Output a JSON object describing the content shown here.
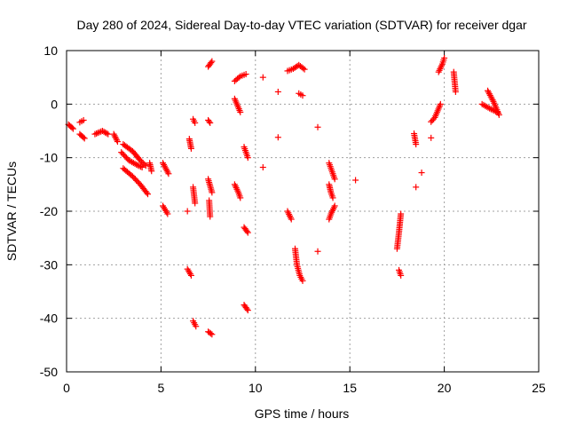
{
  "chart_data": {
    "type": "scatter",
    "title": "Day 280 of 2024, Sidereal Day-to-day VTEC variation (SDTVAR) for receiver dgar",
    "xlabel": "GPS time / hours",
    "ylabel": "SDTVAR / TECUs",
    "xlim": [
      0,
      25
    ],
    "ylim": [
      -50,
      10
    ],
    "xticks": [
      0,
      5,
      10,
      15,
      20,
      25
    ],
    "yticks": [
      -50,
      -40,
      -30,
      -20,
      -10,
      0,
      10
    ],
    "grid": true,
    "marker": "+",
    "color": "#ff0000",
    "segments": [
      {
        "x": [
          0.1,
          0.35
        ],
        "y": [
          -3.8,
          -4.6
        ]
      },
      {
        "x": [
          0.7,
          0.9
        ],
        "y": [
          -3.4,
          -3.0
        ]
      },
      {
        "x": [
          0.7,
          0.95
        ],
        "y": [
          -5.6,
          -6.4
        ]
      },
      {
        "x": [
          1.5,
          1.9,
          2.2
        ],
        "y": [
          -5.6,
          -5.0,
          -5.6
        ]
      },
      {
        "x": [
          2.5,
          2.7
        ],
        "y": [
          -5.6,
          -7.0
        ]
      },
      {
        "x": [
          3.0,
          3.5,
          3.9,
          4.2
        ],
        "y": [
          -7.5,
          -8.8,
          -10.5,
          -11.5
        ]
      },
      {
        "x": [
          2.9,
          3.3,
          3.7,
          4.0
        ],
        "y": [
          -9.0,
          -10.5,
          -11.3,
          -11.8
        ]
      },
      {
        "x": [
          3.0,
          3.5,
          3.9,
          4.3
        ],
        "y": [
          -12.0,
          -13.5,
          -15.0,
          -16.8
        ]
      },
      {
        "x": [
          4.4,
          4.5
        ],
        "y": [
          -11.0,
          -12.5
        ]
      },
      {
        "x": [
          5.1,
          5.4
        ],
        "y": [
          -11.0,
          -13.0
        ]
      },
      {
        "x": [
          5.1,
          5.35
        ],
        "y": [
          -19.0,
          -20.5
        ]
      },
      {
        "x": [
          6.5,
          6.6
        ],
        "y": [
          -6.5,
          -8.3
        ]
      },
      {
        "x": [
          6.4
        ],
        "y": [
          -20.0
        ]
      },
      {
        "x": [
          6.4,
          6.6
        ],
        "y": [
          -30.8,
          -32.0
        ]
      },
      {
        "x": [
          6.7,
          6.8
        ],
        "y": [
          -2.8,
          -3.5
        ]
      },
      {
        "x": [
          6.7,
          6.8
        ],
        "y": [
          -15.5,
          -18.5
        ]
      },
      {
        "x": [
          6.7,
          6.85
        ],
        "y": [
          -40.5,
          -41.5
        ]
      },
      {
        "x": [
          7.5,
          7.7
        ],
        "y": [
          7.0,
          8.0
        ]
      },
      {
        "x": [
          7.5,
          7.6
        ],
        "y": [
          -3.0,
          -3.5
        ]
      },
      {
        "x": [
          7.5,
          7.7
        ],
        "y": [
          -14.0,
          -16.5
        ]
      },
      {
        "x": [
          7.55,
          7.6
        ],
        "y": [
          -18.0,
          -21.0
        ]
      },
      {
        "x": [
          7.5,
          7.7
        ],
        "y": [
          -42.5,
          -43.0
        ]
      },
      {
        "x": [
          8.9,
          9.2,
          9.5
        ],
        "y": [
          4.3,
          5.2,
          5.6
        ]
      },
      {
        "x": [
          8.9,
          9.2
        ],
        "y": [
          1.0,
          -1.5
        ]
      },
      {
        "x": [
          8.9,
          9.1,
          9.2
        ],
        "y": [
          -15.0,
          -16.5,
          -17.5
        ]
      },
      {
        "x": [
          9.4,
          9.6
        ],
        "y": [
          -8.0,
          -10.0
        ]
      },
      {
        "x": [
          9.4,
          9.6
        ],
        "y": [
          -23.0,
          -24.0
        ]
      },
      {
        "x": [
          9.4,
          9.6
        ],
        "y": [
          -37.5,
          -38.5
        ]
      },
      {
        "x": [
          10.4
        ],
        "y": [
          5.0
        ]
      },
      {
        "x": [
          10.4
        ],
        "y": [
          -11.8
        ]
      },
      {
        "x": [
          11.2
        ],
        "y": [
          2.3
        ]
      },
      {
        "x": [
          11.2
        ],
        "y": [
          -6.2
        ]
      },
      {
        "x": [
          11.7,
          11.9
        ],
        "y": [
          -20.0,
          -21.5
        ]
      },
      {
        "x": [
          11.7,
          12.0,
          12.3,
          12.6
        ],
        "y": [
          6.2,
          6.6,
          7.3,
          6.5
        ]
      },
      {
        "x": [
          12.3,
          12.4,
          12.5
        ],
        "y": [
          2.0,
          1.8,
          1.6
        ]
      },
      {
        "x": [
          12.1,
          12.2,
          12.35,
          12.5
        ],
        "y": [
          -27.0,
          -30.0,
          -32.0,
          -33.0
        ]
      },
      {
        "x": [
          13.3
        ],
        "y": [
          -4.3
        ]
      },
      {
        "x": [
          13.3
        ],
        "y": [
          -27.5
        ]
      },
      {
        "x": [
          13.9,
          14.1,
          14.2
        ],
        "y": [
          -11.0,
          -13.0,
          -14.0
        ]
      },
      {
        "x": [
          13.9,
          14.0,
          14.1
        ],
        "y": [
          -15.0,
          -16.5,
          -17.5
        ]
      },
      {
        "x": [
          14.2,
          14.0,
          13.9
        ],
        "y": [
          -19.0,
          -20.5,
          -21.5
        ]
      },
      {
        "x": [
          15.3
        ],
        "y": [
          -14.2
        ]
      },
      {
        "x": [
          17.5,
          17.6,
          17.7
        ],
        "y": [
          -27.0,
          -24.0,
          -20.5
        ]
      },
      {
        "x": [
          17.6,
          17.7
        ],
        "y": [
          -31.0,
          -32.0
        ]
      },
      {
        "x": [
          18.4,
          18.5
        ],
        "y": [
          -5.5,
          -7.5
        ]
      },
      {
        "x": [
          18.5
        ],
        "y": [
          -15.5
        ]
      },
      {
        "x": [
          18.8
        ],
        "y": [
          -12.8
        ]
      },
      {
        "x": [
          19.3
        ],
        "y": [
          -6.3
        ]
      },
      {
        "x": [
          19.3,
          19.5,
          19.8
        ],
        "y": [
          -3.3,
          -2.5,
          0.0
        ]
      },
      {
        "x": [
          19.7,
          19.9,
          20.0
        ],
        "y": [
          6.0,
          7.5,
          8.6
        ]
      },
      {
        "x": [
          20.5,
          20.6
        ],
        "y": [
          6.0,
          2.3
        ]
      },
      {
        "x": [
          22.0,
          22.4,
          22.8
        ],
        "y": [
          0.0,
          -0.8,
          -1.5
        ]
      },
      {
        "x": [
          22.3,
          22.6,
          22.9
        ],
        "y": [
          2.5,
          0.5,
          -2.0
        ]
      }
    ]
  }
}
